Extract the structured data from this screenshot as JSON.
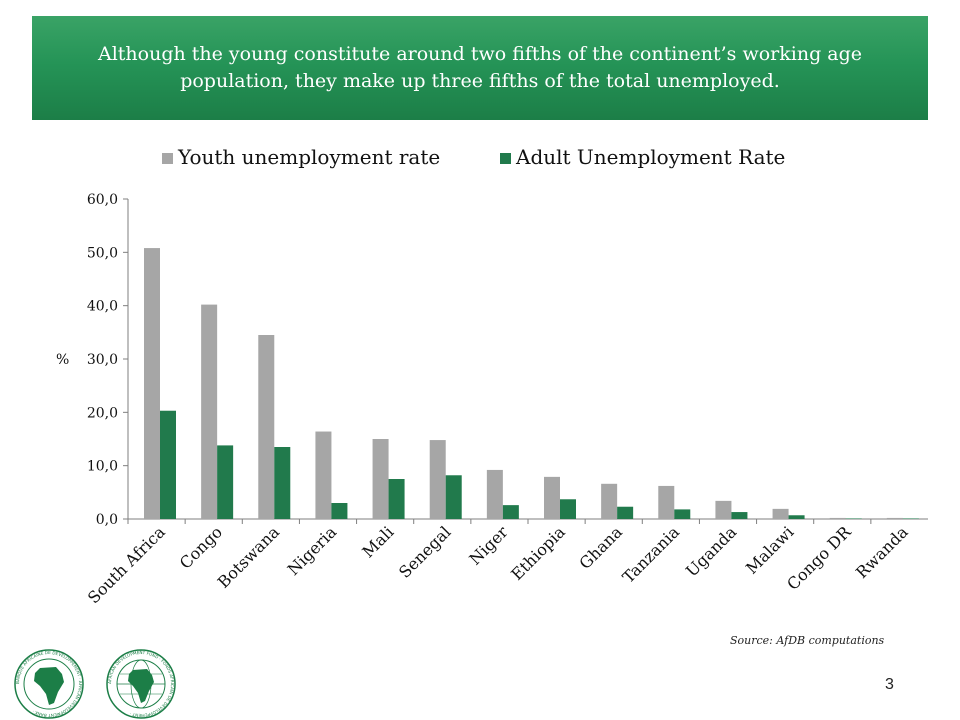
{
  "banner": {
    "line1": "Although the young constitute around two fifths of the continent’s working age",
    "line2": "population, they make up three fifths of the total unemployed."
  },
  "source_note": "Source: AfDB computations",
  "page_number": "3",
  "logos": {
    "afdb_text": "BANQUE AFRICAINE DE DEVELOPPEMENT · AFRICAN DEVELOPMENT BANK ·",
    "adf_text": "AFRICAN DEVELOPMENT FUND · FONDS AFRICAIN DE DEVELOPPEMENT ·"
  },
  "colors": {
    "banner": "#259457",
    "youth": "#a6a6a6",
    "adult": "#217a4c"
  },
  "chart_data": {
    "type": "bar",
    "title": "",
    "ylabel": "%",
    "ylim": [
      0,
      60
    ],
    "yticks": [
      "0,0",
      "10,0",
      "20,0",
      "30,0",
      "40,0",
      "50,0",
      "60,0"
    ],
    "legend_position": "top",
    "categories": [
      "South Africa",
      "Congo",
      "Botswana",
      "Nigeria",
      "Mali",
      "Senegal",
      "Niger",
      "Ethiopia",
      "Ghana",
      "Tanzania",
      "Uganda",
      "Malawi",
      "Congo DR",
      "Rwanda"
    ],
    "series": [
      {
        "name": "Youth unemployment rate",
        "color": "#a6a6a6",
        "values": [
          50.8,
          40.2,
          34.5,
          16.4,
          15.0,
          14.8,
          9.2,
          7.9,
          6.6,
          6.2,
          3.4,
          1.9,
          0.2,
          0.2
        ]
      },
      {
        "name": "Adult Unemployment Rate",
        "color": "#217a4c",
        "values": [
          20.3,
          13.8,
          13.5,
          3.0,
          7.5,
          8.2,
          2.6,
          3.7,
          2.3,
          1.8,
          1.3,
          0.7,
          0.1,
          0.1
        ]
      }
    ]
  }
}
